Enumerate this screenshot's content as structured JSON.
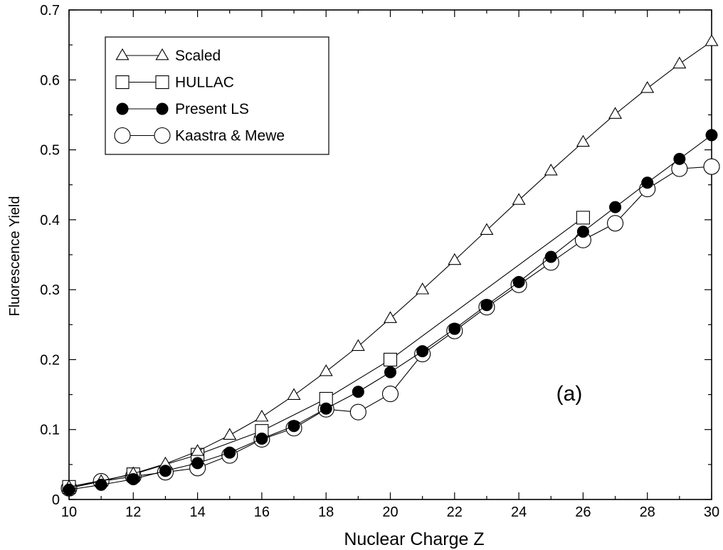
{
  "chart_data": {
    "type": "line",
    "xlabel": "Nuclear Charge Z",
    "ylabel": "Fluorescence Yield",
    "xlim": [
      10,
      30
    ],
    "ylim": [
      0,
      0.7
    ],
    "x_ticks": [
      10,
      12,
      14,
      16,
      18,
      20,
      22,
      24,
      26,
      28,
      30
    ],
    "x_tick_labels": [
      "10",
      "12",
      "14",
      "16",
      "18",
      "20",
      "22",
      "24",
      "26",
      "28",
      "30"
    ],
    "y_ticks": [
      0,
      0.1,
      0.2,
      0.3,
      0.4,
      0.5,
      0.6,
      0.7
    ],
    "y_tick_labels": [
      "0",
      "0.1",
      "0.2",
      "0.3",
      "0.4",
      "0.5",
      "0.6",
      "0.7"
    ],
    "legend_position": "top-left",
    "annotation": "(a)",
    "grid": false,
    "series": [
      {
        "name": "Scaled",
        "marker": "triangle-open",
        "x": [
          10,
          11,
          12,
          13,
          14,
          15,
          16,
          17,
          18,
          19,
          20,
          21,
          22,
          23,
          24,
          25,
          26,
          27,
          28,
          29,
          30
        ],
        "y": [
          0.018,
          0.026,
          0.037,
          0.051,
          0.069,
          0.092,
          0.118,
          0.149,
          0.183,
          0.219,
          0.259,
          0.3,
          0.342,
          0.385,
          0.428,
          0.47,
          0.511,
          0.551,
          0.588,
          0.623,
          0.655
        ]
      },
      {
        "name": "HULLAC",
        "marker": "square-open",
        "x": [
          10,
          12,
          14,
          16,
          18,
          20,
          26
        ],
        "y": [
          0.018,
          0.036,
          0.064,
          0.098,
          0.144,
          0.2,
          0.403
        ]
      },
      {
        "name": "Present LS",
        "marker": "circle-filled",
        "x": [
          10,
          11,
          12,
          13,
          14,
          15,
          16,
          17,
          18,
          19,
          20,
          21,
          22,
          23,
          24,
          25,
          26,
          27,
          28,
          29,
          30
        ],
        "y": [
          0.014,
          0.021,
          0.029,
          0.041,
          0.052,
          0.067,
          0.087,
          0.105,
          0.13,
          0.154,
          0.182,
          0.212,
          0.244,
          0.278,
          0.311,
          0.347,
          0.383,
          0.418,
          0.453,
          0.487,
          0.521
        ]
      },
      {
        "name": "Kaastra & Mewe",
        "marker": "circle-open",
        "x": [
          10,
          11,
          12,
          13,
          14,
          15,
          16,
          17,
          18,
          19,
          20,
          21,
          22,
          23,
          24,
          25,
          26,
          27,
          28,
          29,
          30
        ],
        "y": [
          0.016,
          0.026,
          0.033,
          0.039,
          0.045,
          0.063,
          0.086,
          0.102,
          0.129,
          0.125,
          0.151,
          0.208,
          0.241,
          0.275,
          0.307,
          0.339,
          0.371,
          0.395,
          0.444,
          0.473,
          0.476
        ]
      }
    ]
  }
}
